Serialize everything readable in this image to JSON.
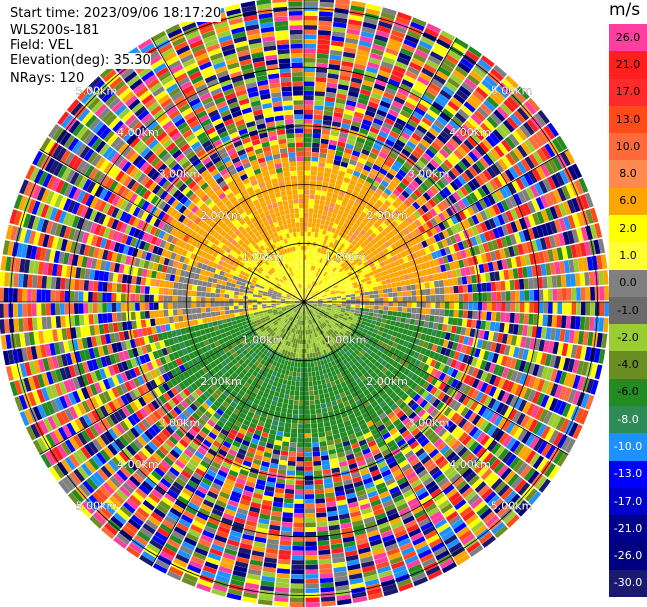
{
  "info": {
    "start_time": "Start time: 2023/09/06 18:17:20",
    "device": "WLS200s-181",
    "field": "Field: VEL",
    "elevation": "Elevation(deg): 35.30",
    "nrays": "NRays: 120"
  },
  "chart_data": {
    "type": "ppi",
    "field": "VEL",
    "units": "m/s",
    "range_rings_km": [
      1.0,
      2.0,
      3.0,
      4.0,
      5.0
    ],
    "ring_label_text": [
      "1.00km",
      "2.00km",
      "3.00km",
      "4.00km",
      "5.00km"
    ],
    "nrays": 120,
    "colorbar": {
      "title": "m/s",
      "ticks": [
        "26.0",
        "21.0",
        "17.0",
        "13.0",
        "10.0",
        "8.0",
        "6.0",
        "2.0",
        "1.0",
        "0.0",
        "-1.0",
        "-2.0",
        "-4.0",
        "-6.0",
        "-8.0",
        "-10.0",
        "-13.0",
        "-17.0",
        "-21.0",
        "-26.0",
        "-30.0"
      ],
      "colors": [
        "#ff3fa0",
        "#ff1f1f",
        "#ff2a2a",
        "#ff4a1a",
        "#ff6a3a",
        "#ff8a50",
        "#ffa500",
        "#ffff00",
        "#ffff33",
        "#808080",
        "#6a6a6a",
        "#9acd32",
        "#6b8e23",
        "#228b22",
        "#2e8b57",
        "#1e90ff",
        "#0000ff",
        "#0000cd",
        "#00008b",
        "#000080",
        "#191970"
      ]
    }
  }
}
